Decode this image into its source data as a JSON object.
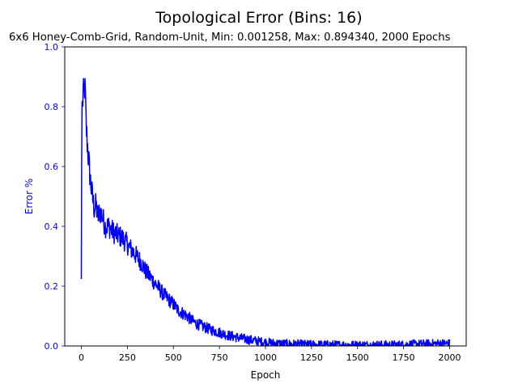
{
  "chart_data": {
    "type": "line",
    "title": "Topological Error (Bins: 16)",
    "subtitle": "6x6 Honey-Comb-Grid, Random-Unit, Min: 0.001258, Max: 0.894340, 2000 Epochs",
    "xlabel": "Epoch",
    "ylabel": "Error %",
    "xlim": [
      -90,
      2090
    ],
    "ylim": [
      0,
      1.0
    ],
    "xticks": [
      "0",
      "250",
      "500",
      "750",
      "1000",
      "1250",
      "1500",
      "1750",
      "2000"
    ],
    "yticks": [
      "0.0",
      "0.2",
      "0.4",
      "0.6",
      "0.8",
      "1.0"
    ],
    "grid": false,
    "series": [
      {
        "color": "#0000ff",
        "x": [
          0,
          3,
          6,
          10,
          15,
          20,
          25,
          30,
          40,
          50,
          60,
          70,
          80,
          90,
          100,
          110,
          120,
          130,
          150,
          175,
          200,
          225,
          250,
          275,
          300,
          325,
          350,
          375,
          400,
          425,
          450,
          475,
          500,
          525,
          550,
          575,
          600,
          625,
          650,
          700,
          750,
          800,
          850,
          900,
          950,
          1000,
          1050,
          1100,
          1150,
          1200,
          1250,
          1300,
          1400,
          1500,
          1600,
          1700,
          1750,
          1800,
          1850,
          1900,
          1950,
          2000
        ],
        "y": [
          0.224,
          0.82,
          0.8,
          0.85,
          0.83,
          0.894,
          0.75,
          0.7,
          0.62,
          0.55,
          0.5,
          0.46,
          0.47,
          0.43,
          0.45,
          0.44,
          0.42,
          0.4,
          0.4,
          0.38,
          0.37,
          0.36,
          0.34,
          0.32,
          0.3,
          0.28,
          0.25,
          0.23,
          0.21,
          0.19,
          0.17,
          0.155,
          0.14,
          0.12,
          0.11,
          0.1,
          0.085,
          0.075,
          0.068,
          0.055,
          0.045,
          0.035,
          0.028,
          0.022,
          0.017,
          0.012,
          0.009,
          0.007,
          0.006,
          0.005,
          0.004,
          0.004,
          0.003,
          0.003,
          0.003,
          0.003,
          0.004,
          0.005,
          0.006,
          0.007,
          0.008,
          0.008
        ]
      }
    ]
  }
}
